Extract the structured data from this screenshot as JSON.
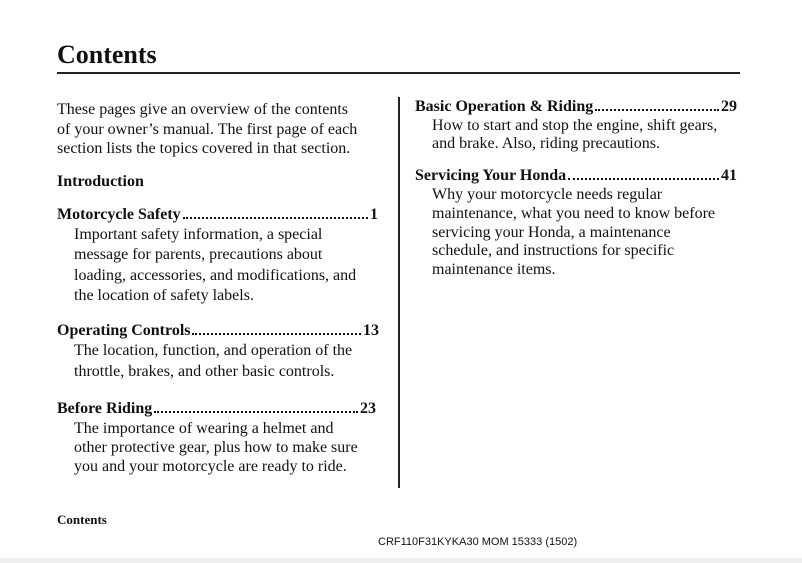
{
  "header": {
    "title": "Contents"
  },
  "intro": [
    "These pages give an overview of the contents",
    "of your owner’s manual. The first page of each",
    "section lists the topics covered in that section."
  ],
  "section_label": "Introduction",
  "entries": [
    {
      "heading": "Motorcycle Safety",
      "page": "1",
      "lines": [
        "Important safety information, a special",
        "message for parents, precautions about",
        "loading, accessories, and modifications,  and",
        "the location of safety labels."
      ]
    },
    {
      "heading": "Operating Controls",
      "page": "13",
      "lines": [
        "The location, function, and operation of  the",
        "throttle, brakes, and other basic  controls."
      ]
    },
    {
      "heading": "Before Riding",
      "page": "23",
      "lines": [
        "The importance of wearing a helmet and",
        "other protective gear, plus how to make sure",
        "you and your motorcycle are ready to ride."
      ]
    },
    {
      "heading": "Basic Operation & Riding",
      "page": "29",
      "lines": [
        "How to start and stop the engine, shift gears,",
        "and brake. Also, riding precautions."
      ]
    },
    {
      "heading": "Servicing Your Honda",
      "page": "41",
      "lines": [
        "Why your motorcycle needs regular",
        "maintenance, what you need to know before",
        "servicing your Honda, a maintenance",
        "schedule, and instructions for specific",
        "maintenance items."
      ]
    }
  ],
  "footer": {
    "label": "Contents",
    "code": "CRF110F31KYKA30 MOM 15333 (1502)"
  }
}
